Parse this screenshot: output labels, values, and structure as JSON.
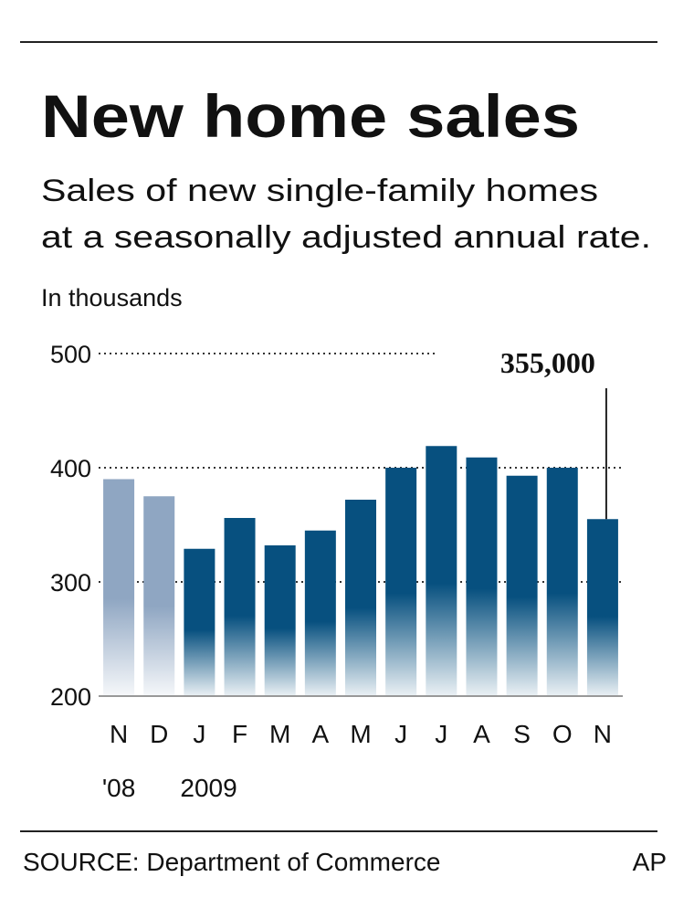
{
  "chart_data": {
    "type": "bar",
    "title": "New home sales",
    "subtitle": [
      "Sales of new single-family homes",
      "at a seasonally adjusted annual rate."
    ],
    "y_label": "In thousands",
    "categories": [
      "N",
      "D",
      "J",
      "F",
      "M",
      "A",
      "M",
      "J",
      "J",
      "A",
      "S",
      "O",
      "N"
    ],
    "year_labels": [
      "'08",
      "2009"
    ],
    "values": [
      390,
      375,
      329,
      356,
      332,
      345,
      372,
      400,
      419,
      409,
      393,
      400,
      355
    ],
    "value_labels": [
      null,
      null,
      null,
      null,
      null,
      null,
      null,
      null,
      null,
      null,
      null,
      null,
      "355,000"
    ],
    "colors": [
      "#8fa6c2",
      "#8fa6c2",
      "#07507f",
      "#07507f",
      "#07507f",
      "#07507f",
      "#07507f",
      "#07507f",
      "#07507f",
      "#07507f",
      "#07507f",
      "#07507f",
      "#07507f"
    ],
    "ylim": [
      200,
      500
    ],
    "yticks": [
      200,
      300,
      400,
      500
    ],
    "grid": true,
    "source": "SOURCE: Department of Commerce",
    "credit": "AP"
  }
}
